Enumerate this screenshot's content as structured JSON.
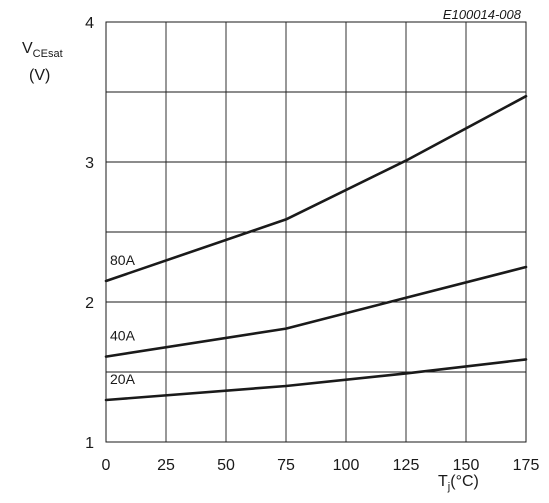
{
  "chart_data": {
    "type": "line",
    "annotation": "E100014-008",
    "ylabel": {
      "main": "V",
      "subscript": "CEsat",
      "unit": "(V)"
    },
    "xlabel": {
      "main": "T",
      "subscript": "j",
      "unit": "(°C)"
    },
    "xlim": [
      0,
      175
    ],
    "ylim": [
      1,
      4
    ],
    "x_ticks": [
      0,
      25,
      50,
      75,
      100,
      125,
      150,
      175
    ],
    "y_ticks": [
      1,
      2,
      3,
      4
    ],
    "grid": true,
    "series": [
      {
        "name": "80A",
        "x": [
          0,
          75,
          125,
          175
        ],
        "values": [
          2.15,
          2.59,
          3.01,
          3.47
        ]
      },
      {
        "name": "40A",
        "x": [
          0,
          75,
          125,
          175
        ],
        "values": [
          1.61,
          1.81,
          2.03,
          2.25
        ]
      },
      {
        "name": "20A",
        "x": [
          0,
          75,
          125,
          175
        ],
        "values": [
          1.3,
          1.4,
          1.49,
          1.59
        ]
      }
    ]
  }
}
